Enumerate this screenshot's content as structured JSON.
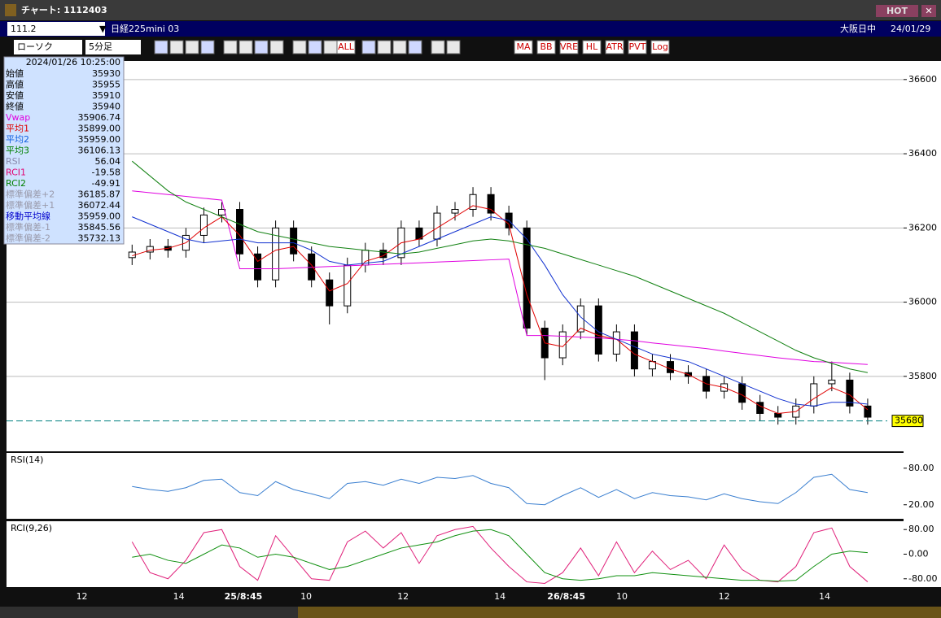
{
  "window": {
    "title": "チャート: 1112403",
    "badge": "HOT"
  },
  "toolbar": {
    "symbol": "111.2",
    "name": "日経225mini 03",
    "session": "大阪日中",
    "date": "24/01/29",
    "chart_type": "ローソク",
    "interval": "5分足",
    "buttons": [
      "ALL",
      "MA",
      "BB",
      "VRE",
      "HL",
      "ATR",
      "PVT",
      "Log"
    ]
  },
  "info_panel": {
    "timestamp": "2024/01/26 10:25:00",
    "rows": [
      {
        "label": "始値",
        "value": "35930",
        "color": "#000000"
      },
      {
        "label": "高値",
        "value": "35955",
        "color": "#000000"
      },
      {
        "label": "安値",
        "value": "35910",
        "color": "#000000"
      },
      {
        "label": "終値",
        "value": "35940",
        "color": "#000000"
      },
      {
        "label": "Vwap",
        "value": "35906.74",
        "color": "#e000e0"
      },
      {
        "label": "平均1",
        "value": "35899.00",
        "color": "#e00000"
      },
      {
        "label": "平均2",
        "value": "35959.00",
        "color": "#1060e0"
      },
      {
        "label": "平均3",
        "value": "36106.13",
        "color": "#008000"
      },
      {
        "label": "RSI",
        "value": "56.04",
        "color": "#8888aa"
      },
      {
        "label": "RCI1",
        "value": "-19.58",
        "color": "#e00070"
      },
      {
        "label": "RCI2",
        "value": "-49.91",
        "color": "#008000"
      },
      {
        "label": "標準偏差+2",
        "value": "36185.87",
        "color": "#9999aa"
      },
      {
        "label": "標準偏差+1",
        "value": "36072.44",
        "color": "#9999aa"
      },
      {
        "label": "移動平均線",
        "value": "35959.00",
        "color": "#0000cc"
      },
      {
        "label": "標準偏差-1",
        "value": "35845.56",
        "color": "#9999aa"
      },
      {
        "label": "標準偏差-2",
        "value": "35732.13",
        "color": "#9999aa"
      }
    ]
  },
  "chart_data": [
    {
      "type": "candlestick",
      "xlim": [
        -7,
        43
      ],
      "ylim": [
        35598,
        36650
      ],
      "yticks": [
        36600,
        36400,
        36200,
        36000,
        35800
      ],
      "grid": true,
      "x_labels": [
        {
          "value": -2.8,
          "label": "12"
        },
        {
          "value": 2.6,
          "label": "14"
        },
        {
          "value": 6.2,
          "label": "25/8:45"
        },
        {
          "value": 9.7,
          "label": "10"
        },
        {
          "value": 15.1,
          "label": "12"
        },
        {
          "value": 20.5,
          "label": "14"
        },
        {
          "value": 24.2,
          "label": "26/8:45"
        },
        {
          "value": 27.3,
          "label": "10"
        },
        {
          "value": 33.0,
          "label": "12"
        },
        {
          "value": 38.6,
          "label": "14"
        }
      ],
      "current_price": 35680,
      "open": [
        36120,
        36135,
        36150,
        36140,
        36180,
        36235,
        36250,
        36130,
        36060,
        36200,
        36130,
        36060,
        35990,
        36100,
        36140,
        36120,
        36200,
        36170,
        36240,
        36250,
        36290,
        36240,
        36200,
        35930,
        35850,
        35920,
        35990,
        35860,
        35920,
        35820,
        35840,
        35810,
        35800,
        35760,
        35780,
        35730,
        35700,
        35690,
        35720,
        35780,
        35790,
        35720
      ],
      "high": [
        36155,
        36170,
        36170,
        36200,
        36255,
        36270,
        36270,
        36150,
        36220,
        36220,
        36150,
        36080,
        36120,
        36160,
        36160,
        36220,
        36220,
        36260,
        36270,
        36310,
        36310,
        36260,
        36220,
        35950,
        35940,
        36010,
        36010,
        35940,
        35940,
        35860,
        35860,
        35830,
        35820,
        35800,
        35800,
        35750,
        35720,
        35740,
        35800,
        35840,
        35810,
        35740
      ],
      "low": [
        36100,
        36115,
        36120,
        36120,
        36160,
        36215,
        36110,
        36040,
        36040,
        36110,
        36040,
        35940,
        35970,
        36080,
        36100,
        36100,
        36150,
        36150,
        36220,
        36230,
        36220,
        36180,
        35910,
        35790,
        35830,
        35900,
        35840,
        35840,
        35800,
        35800,
        35790,
        35780,
        35740,
        35740,
        35710,
        35680,
        35670,
        35670,
        35700,
        35760,
        35700,
        35670
      ],
      "close": [
        36135,
        36150,
        36140,
        36180,
        36235,
        36250,
        36130,
        36060,
        36200,
        36130,
        36060,
        35990,
        36100,
        36140,
        36120,
        36200,
        36170,
        36240,
        36250,
        36290,
        36240,
        36200,
        35930,
        35850,
        35920,
        35990,
        35860,
        35920,
        35820,
        35840,
        35810,
        35800,
        35760,
        35780,
        35730,
        35700,
        35690,
        35720,
        35780,
        35790,
        35720,
        35690
      ],
      "series": [
        {
          "name": "Vwap",
          "color": "#e000e0",
          "values": [
            36300,
            36295,
            36290,
            36285,
            36280,
            36275,
            36090,
            36090,
            36090,
            36092,
            36094,
            36096,
            36098,
            36100,
            36102,
            36104,
            36106,
            36108,
            36110,
            36112,
            36114,
            36116,
            35910,
            35910,
            35908,
            35906,
            35904,
            35900,
            35896,
            35890,
            35885,
            35880,
            35875,
            35868,
            35862,
            35856,
            35850,
            35845,
            35840,
            35838,
            35835,
            35832
          ]
        },
        {
          "name": "平均1",
          "color": "#e00000",
          "values": [
            36125,
            36140,
            36145,
            36160,
            36200,
            36230,
            36180,
            36110,
            36140,
            36150,
            36100,
            36030,
            36050,
            36110,
            36125,
            36160,
            36170,
            36200,
            36230,
            36260,
            36250,
            36210,
            36020,
            35890,
            35880,
            35930,
            35910,
            35900,
            35860,
            35840,
            35820,
            35805,
            35780,
            35770,
            35750,
            35720,
            35700,
            35705,
            35740,
            35770,
            35750,
            35710
          ]
        },
        {
          "name": "平均2",
          "color": "#1030d0",
          "values": [
            36230,
            36210,
            36190,
            36170,
            36160,
            36165,
            36170,
            36160,
            36160,
            36160,
            36140,
            36110,
            36100,
            36105,
            36110,
            36130,
            36150,
            36170,
            36190,
            36210,
            36230,
            36220,
            36170,
            36100,
            36020,
            35960,
            35920,
            35900,
            35880,
            35860,
            35850,
            35840,
            35820,
            35800,
            35780,
            35760,
            35740,
            35725,
            35720,
            35730,
            35730,
            35725
          ]
        },
        {
          "name": "平均3",
          "color": "#108010",
          "values": [
            36380,
            36340,
            36300,
            36270,
            36250,
            36230,
            36210,
            36190,
            36180,
            36170,
            36160,
            36150,
            36145,
            36140,
            36135,
            36130,
            36135,
            36145,
            36155,
            36165,
            36170,
            36165,
            36155,
            36145,
            36130,
            36115,
            36100,
            36085,
            36070,
            36050,
            36030,
            36010,
            35990,
            35970,
            35945,
            35920,
            35895,
            35870,
            35850,
            35835,
            35820,
            35810
          ]
        }
      ]
    },
    {
      "type": "line",
      "title": "RSI(14)",
      "xlim": [
        -7,
        43
      ],
      "ylim": [
        -3,
        105
      ],
      "yticks": [
        {
          "value": 80,
          "label": "80.00"
        },
        {
          "value": 20,
          "label": "20.00"
        }
      ],
      "series": [
        {
          "name": "RSI",
          "color": "#3a7fd0",
          "values": [
            50,
            45,
            42,
            48,
            60,
            62,
            40,
            35,
            58,
            45,
            38,
            30,
            55,
            58,
            52,
            62,
            55,
            65,
            63,
            68,
            55,
            48,
            22,
            20,
            35,
            48,
            32,
            45,
            30,
            40,
            35,
            33,
            28,
            38,
            30,
            25,
            22,
            40,
            65,
            70,
            45,
            40
          ]
        }
      ]
    },
    {
      "type": "line",
      "title": "RCI(9,26)",
      "xlim": [
        -7,
        43
      ],
      "ylim": [
        -107,
        107
      ],
      "yticks": [
        {
          "value": 80,
          "label": "80.00"
        },
        {
          "value": 0,
          "label": "0.00"
        },
        {
          "value": -80,
          "label": "-80.00"
        }
      ],
      "series": [
        {
          "name": "RCI1",
          "color": "#e0207a",
          "values": [
            40,
            -60,
            -80,
            -20,
            70,
            80,
            -40,
            -85,
            60,
            -10,
            -80,
            -85,
            40,
            75,
            20,
            70,
            -30,
            60,
            80,
            90,
            20,
            -40,
            -90,
            -95,
            -60,
            20,
            -70,
            40,
            -60,
            10,
            -50,
            -20,
            -80,
            30,
            -50,
            -85,
            -90,
            -40,
            70,
            85,
            -40,
            -90
          ]
        },
        {
          "name": "RCI2",
          "color": "#109010",
          "values": [
            -10,
            0,
            -20,
            -30,
            0,
            30,
            20,
            -10,
            0,
            -10,
            -30,
            -50,
            -40,
            -20,
            0,
            20,
            30,
            40,
            60,
            75,
            80,
            60,
            0,
            -60,
            -80,
            -85,
            -80,
            -70,
            -70,
            -60,
            -65,
            -70,
            -75,
            -80,
            -85,
            -85,
            -88,
            -85,
            -40,
            0,
            10,
            5
          ]
        }
      ]
    }
  ]
}
